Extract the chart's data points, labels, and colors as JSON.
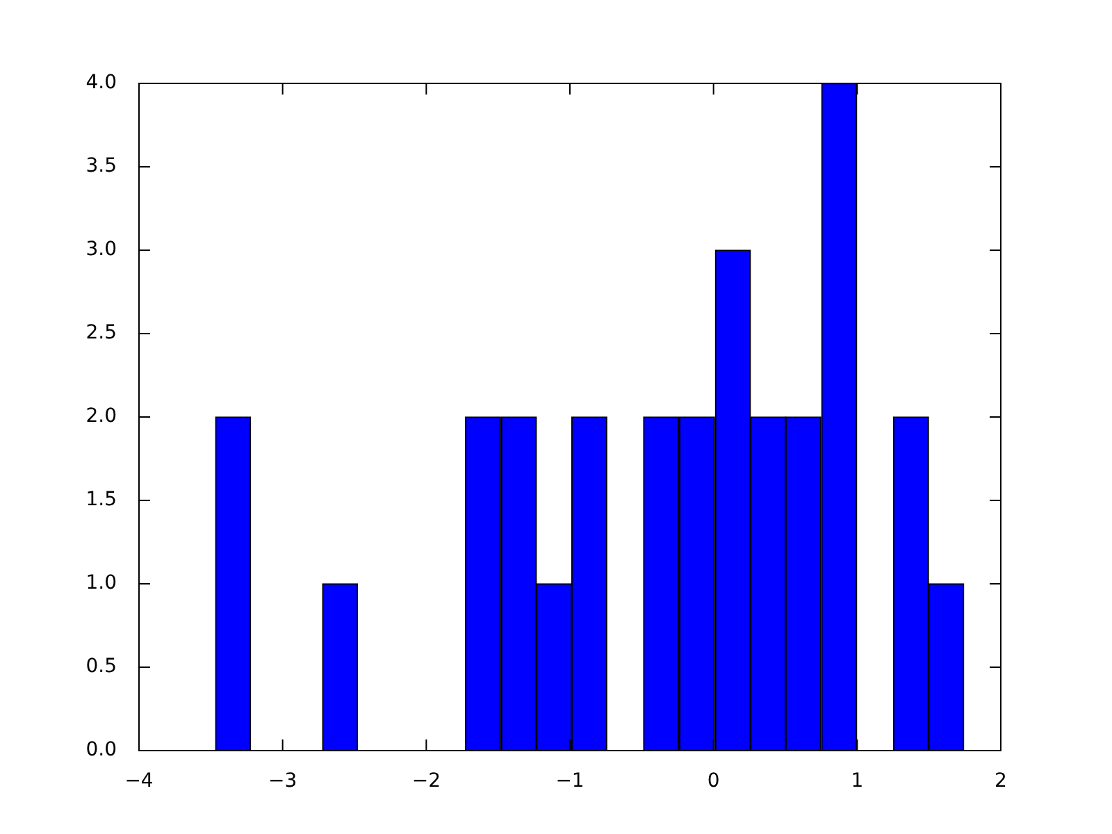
{
  "chart_data": {
    "type": "histogram",
    "bins": [
      -3.47,
      -3.22,
      -2.97,
      -2.72,
      -2.48,
      -2.23,
      -1.98,
      -1.73,
      -1.48,
      -1.23,
      -0.99,
      -0.74,
      -0.49,
      -0.24,
      0.01,
      0.26,
      0.5,
      0.75,
      1.0,
      1.25,
      1.5,
      1.74
    ],
    "values": [
      2,
      0,
      0,
      1,
      0,
      0,
      0,
      2,
      2,
      1,
      2,
      0,
      2,
      2,
      3,
      2,
      2,
      4,
      0,
      2,
      1
    ],
    "color": "#0000ff",
    "xlim": [
      -4,
      2
    ],
    "xticks": [
      {
        "value": -4,
        "label": "−4"
      },
      {
        "value": -3,
        "label": "−3"
      },
      {
        "value": -2,
        "label": "−2"
      },
      {
        "value": -1,
        "label": "−1"
      },
      0,
      1,
      2
    ],
    "ylim": [
      0,
      4
    ],
    "yticks": [
      {
        "value": 0,
        "label": "0.0"
      },
      {
        "value": 0.5,
        "label": "0.5"
      },
      {
        "value": 1,
        "label": "1.0"
      },
      {
        "value": 1.5,
        "label": "1.5"
      },
      {
        "value": 2,
        "label": "2.0"
      },
      {
        "value": 2.5,
        "label": "2.5"
      },
      {
        "value": 3,
        "label": "3.0"
      },
      {
        "value": 3.5,
        "label": "3.5"
      },
      {
        "value": 4,
        "label": "4.0"
      }
    ]
  }
}
